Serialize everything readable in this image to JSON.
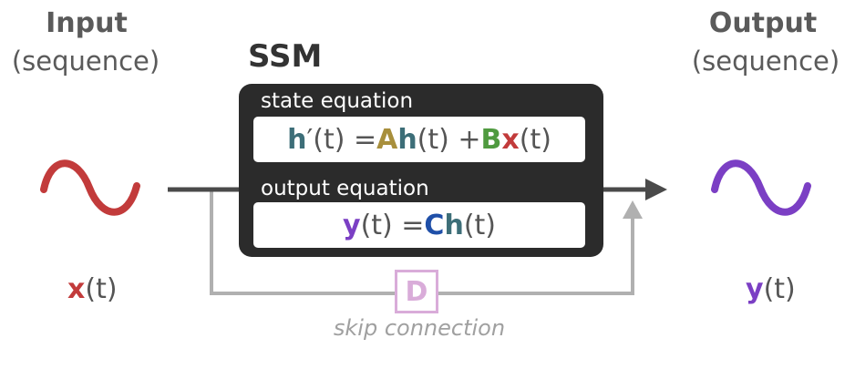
{
  "input": {
    "title": "Input",
    "subtitle": "(sequence)",
    "signal_symbol": "x",
    "signal_arg": "(t)"
  },
  "output": {
    "title": "Output",
    "subtitle": "(sequence)",
    "signal_symbol": "y",
    "signal_arg": "(t)"
  },
  "ssm": {
    "title": "SSM",
    "state_equation_label": "state equation",
    "output_equation_label": "output equation",
    "state_equation": {
      "h": "h",
      "prime_t": "′(t) = ",
      "A": "A",
      "h2": "h",
      "t_plus": "(t) + ",
      "B": "B",
      "x": "x",
      "t_end": "(t)"
    },
    "output_equation": {
      "y": "y",
      "t_eq": "(t) = ",
      "C": "C",
      "h": "h",
      "t_end": "(t)"
    }
  },
  "skip": {
    "d_label": "D",
    "caption": "skip connection"
  },
  "colors": {
    "x": "#c23b3b",
    "y": "#7b3fc4",
    "h": "#3d6e78",
    "A": "#a88f3c",
    "B": "#4f9a3f",
    "C": "#1f4fa8",
    "wire_dark": "#4a4a4a",
    "wire_skip": "#b0b0b0",
    "d_border": "#d9acd9",
    "ssm_bg": "#2b2b2b"
  }
}
